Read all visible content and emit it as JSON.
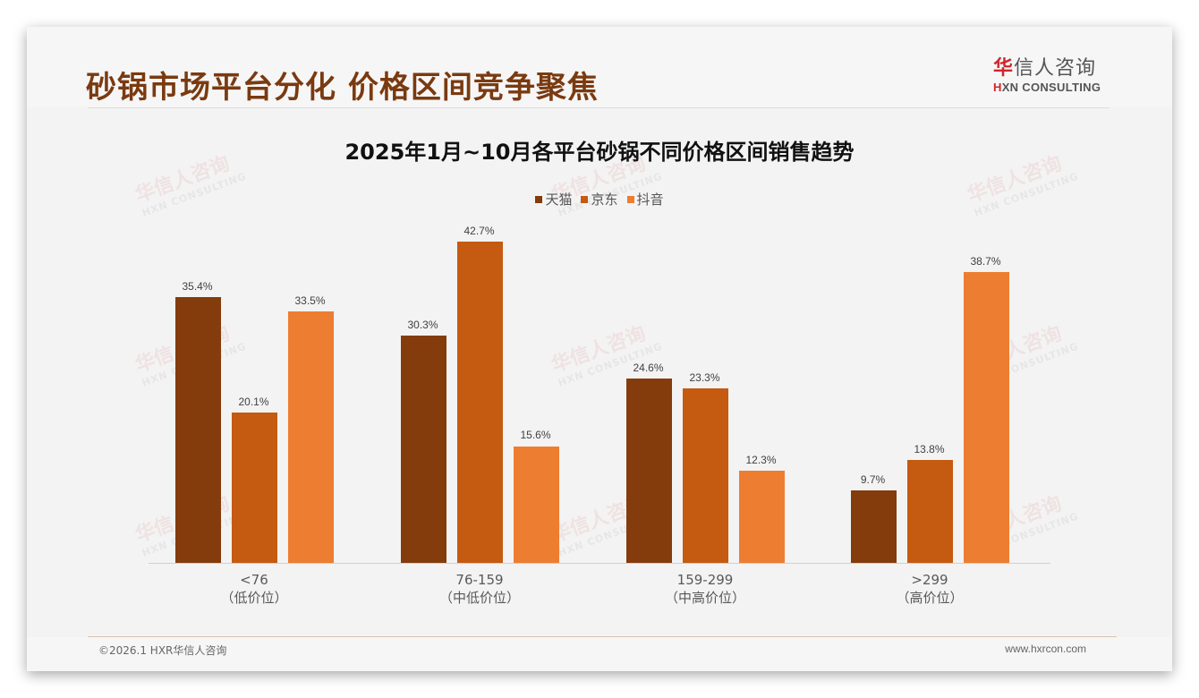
{
  "header": {
    "title": "砂锅市场平台分化 价格区间竞争聚焦",
    "logo_cn_first": "华",
    "logo_cn_rest": "信人咨询",
    "logo_en_first": "H",
    "logo_en_rest": "XN CONSULTING"
  },
  "watermark": {
    "cn": "华信人咨询",
    "en": "HXN CONSULTING"
  },
  "colors": {
    "tmall": "#843c0c",
    "jd": "#c55a11",
    "douyin": "#ed7d31",
    "title": "#7a3a10"
  },
  "chart_data": {
    "type": "bar",
    "title": "2025年1月~10月各平台砂锅不同价格区间销售趋势",
    "categories": [
      "<76",
      "76-159",
      "159-299",
      ">299"
    ],
    "category_sublabels": [
      "（低价位）",
      "（中低价位）",
      "（中高价位）",
      "（高价位）"
    ],
    "series": [
      {
        "name": "天猫",
        "color": "#843c0c",
        "values": [
          35.4,
          30.3,
          24.6,
          9.7
        ],
        "labels": [
          "35.4%",
          "30.3%",
          "24.6%",
          "9.7%"
        ]
      },
      {
        "name": "京东",
        "color": "#c55a11",
        "values": [
          20.1,
          42.7,
          23.3,
          13.8
        ],
        "labels": [
          "20.1%",
          "42.7%",
          "23.3%",
          "13.8%"
        ]
      },
      {
        "name": "抖音",
        "color": "#ed7d31",
        "values": [
          33.5,
          15.6,
          12.3,
          38.7
        ],
        "labels": [
          "33.5%",
          "15.6%",
          "12.3%",
          "38.7%"
        ]
      }
    ],
    "unit": "%",
    "xlabel": "",
    "ylabel": "",
    "ylim": [
      0,
      48
    ],
    "grid": false,
    "legend_position": "top"
  },
  "footer": {
    "copyright": "©2026.1 HXR华信人咨询",
    "website": "www.hxrcon.com"
  }
}
